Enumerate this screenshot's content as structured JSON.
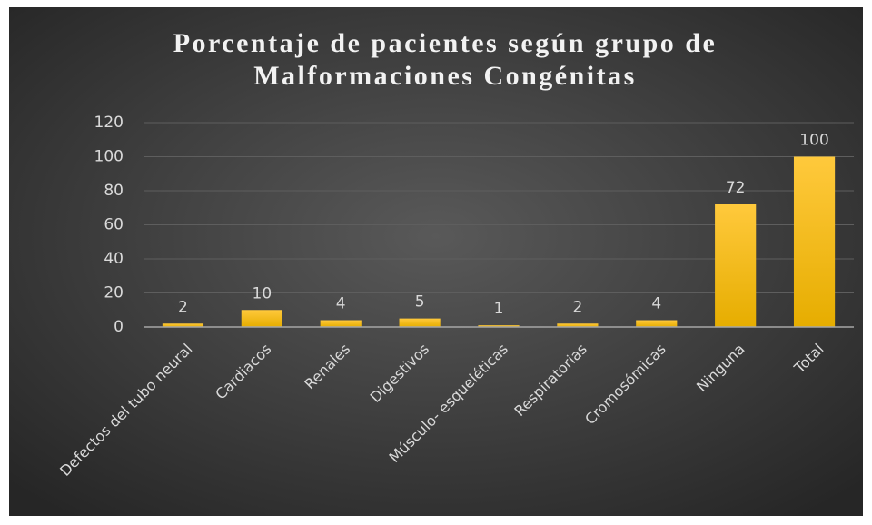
{
  "chart_data": {
    "type": "bar",
    "title": [
      "Porcentaje de pacientes según grupo de",
      "Malformaciones Congénitas"
    ],
    "categories": [
      "Defectos del tubo neural",
      "Cardiacos",
      "Renales",
      "Digestivos",
      "Músculo- esqueléticas",
      "Respiratorias",
      "Cromosómicas",
      "Ninguna",
      "Total"
    ],
    "values": [
      2,
      10,
      4,
      5,
      1,
      2,
      4,
      72,
      100
    ],
    "color": "#ffc000",
    "ylim": [
      0,
      120
    ],
    "yticks": [
      0,
      20,
      40,
      60,
      80,
      100,
      120
    ],
    "grid": true,
    "data_labels": true
  }
}
